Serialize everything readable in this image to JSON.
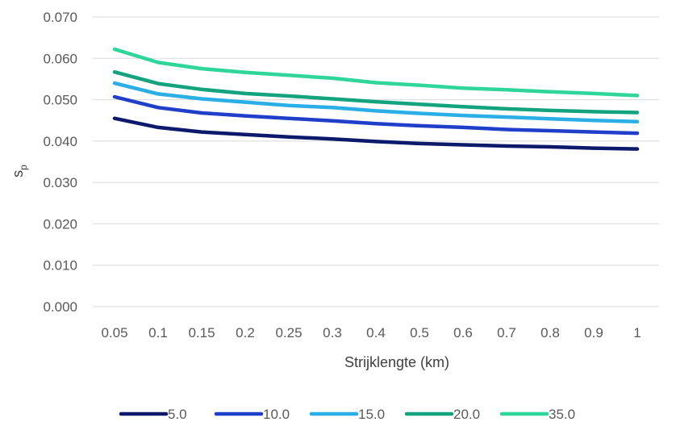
{
  "chart_data": {
    "type": "line",
    "title": "",
    "xlabel": "Strijklengte (km)",
    "ylabel_main": "s",
    "ylabel_sub": "p",
    "categories": [
      "0.05",
      "0.1",
      "0.15",
      "0.2",
      "0.25",
      "0.3",
      "0.4",
      "0.5",
      "0.6",
      "0.7",
      "0.8",
      "0.9",
      "1"
    ],
    "ylim": [
      0,
      0.07
    ],
    "yticks": [
      "0.000",
      "0.010",
      "0.020",
      "0.030",
      "0.040",
      "0.050",
      "0.060",
      "0.070"
    ],
    "grid": true,
    "legend_position": "bottom",
    "series": [
      {
        "name": "5.0",
        "color": "#0d1a6b",
        "values": [
          0.0455,
          0.0433,
          0.0422,
          0.0416,
          0.041,
          0.0405,
          0.0399,
          0.0394,
          0.0391,
          0.0388,
          0.0386,
          0.0383,
          0.0381
        ]
      },
      {
        "name": "10.0",
        "color": "#1f3ec9",
        "values": [
          0.0507,
          0.0481,
          0.0468,
          0.0461,
          0.0455,
          0.0449,
          0.0442,
          0.0437,
          0.0433,
          0.0428,
          0.0425,
          0.0422,
          0.0419
        ]
      },
      {
        "name": "15.0",
        "color": "#2aaee6",
        "values": [
          0.054,
          0.0514,
          0.0502,
          0.0494,
          0.0486,
          0.0481,
          0.0473,
          0.0467,
          0.0462,
          0.0458,
          0.0454,
          0.045,
          0.0447
        ]
      },
      {
        "name": "20.0",
        "color": "#14a37f",
        "values": [
          0.0567,
          0.0539,
          0.0525,
          0.0515,
          0.0509,
          0.0502,
          0.0495,
          0.0489,
          0.0483,
          0.0478,
          0.0474,
          0.0471,
          0.0469
        ]
      },
      {
        "name": "35.0",
        "color": "#2ed69a",
        "values": [
          0.0622,
          0.059,
          0.0575,
          0.0566,
          0.0559,
          0.0552,
          0.0541,
          0.0535,
          0.0528,
          0.0524,
          0.0519,
          0.0515,
          0.051
        ]
      }
    ]
  }
}
